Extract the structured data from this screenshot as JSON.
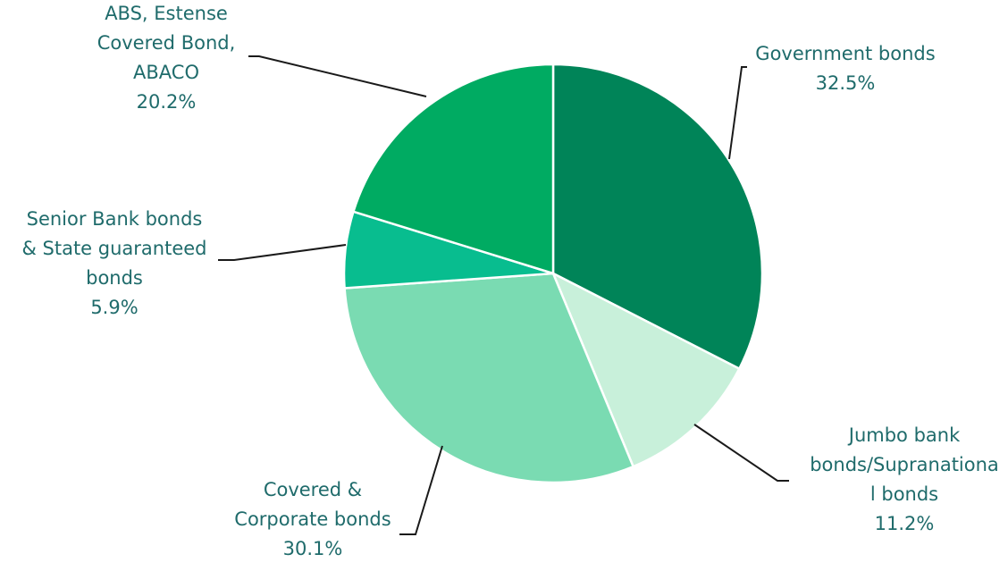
{
  "chart_data": {
    "type": "pie",
    "title": "",
    "start_angle_deg": 0,
    "direction": "clockwise",
    "slices": [
      {
        "lines": [
          "Government  bonds"
        ],
        "value_label": "32.5%",
        "value": 32.5,
        "color": "#008458"
      },
      {
        "lines": [
          "Jumbo bank",
          "bonds/Supranationa",
          "l bonds"
        ],
        "value_label": "11.2%",
        "value": 11.2,
        "color": "#c8f0da"
      },
      {
        "lines": [
          "Covered &",
          "Corporate bonds"
        ],
        "value_label": "30.1%",
        "value": 30.1,
        "color": "#7adbb2"
      },
      {
        "lines": [
          "Senior Bank bonds",
          "& State guaranteed",
          "bonds"
        ],
        "value_label": "5.9%",
        "value": 5.9,
        "color": "#08bd8f"
      },
      {
        "lines": [
          "ABS, Estense",
          "Covered Bond,",
          "ABACO"
        ],
        "value_label": "20.2%",
        "value": 20.2,
        "color": "#00ab62"
      }
    ]
  }
}
